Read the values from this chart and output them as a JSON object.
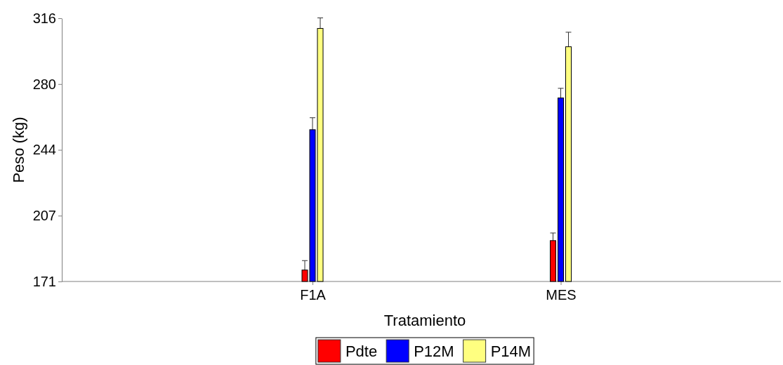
{
  "chart_data": {
    "type": "bar",
    "xlabel": "Tratamiento",
    "ylabel": "Peso (kg)",
    "categories": [
      "F1A",
      "MES"
    ],
    "series": [
      {
        "name": "Pdte",
        "color": "#ff0000",
        "values": [
          177.3,
          193.5
        ],
        "errors": [
          5.2,
          4.2
        ]
      },
      {
        "name": "P12M",
        "color": "#0000ff",
        "values": [
          254.6,
          272.1
        ],
        "errors": [
          6.6,
          5.3
        ]
      },
      {
        "name": "P14M",
        "color": "#ffff80",
        "values": [
          310.4,
          300.3
        ],
        "errors": [
          5.8,
          8
        ]
      }
    ],
    "ylim": [
      171,
      316
    ],
    "yticks": [
      171,
      {
        "value": 207.25,
        "label": "207"
      },
      {
        "value": 243.5,
        "label": "244"
      },
      {
        "value": 279.75,
        "label": "280"
      },
      316
    ],
    "grid": false,
    "legend": "bottom"
  }
}
